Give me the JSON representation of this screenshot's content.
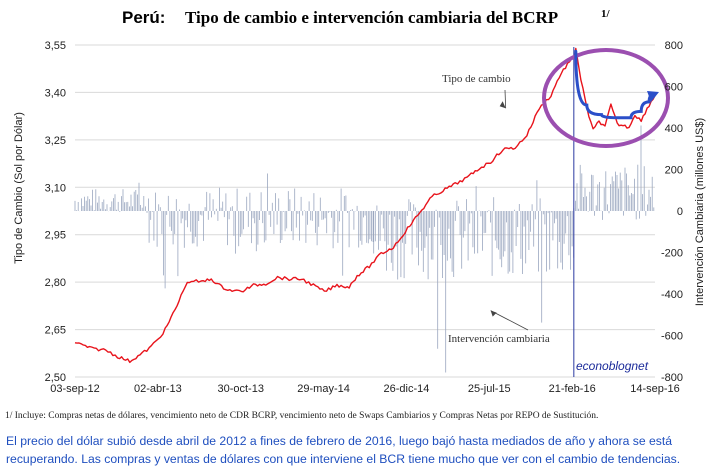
{
  "header": {
    "title_country": "Perú:",
    "title_text": "Tipo de cambio e intervención cambiaria del BCRP",
    "title_note": "1/"
  },
  "footnote": "1/ Incluye: Compras netas de dólares, vencimiento neto de CDR BCRP, vencimiento neto de Swaps Cambiarios y Compras Netas por REPO de Sustitución.",
  "caption": "El precio del dólar subió desde abril de 2012 a fines de febrero de 2016, luego bajó hasta mediados de año y ahora se está recuperando. Las compras y ventas de dólares con que interviene el BCR tiene mucho que ver con el cambio de tendencias.",
  "watermark": "econoblognet",
  "chart_data": {
    "type": "line",
    "title": "Perú: Tipo de cambio e intervención cambiaria del BCRP 1/",
    "x_tick_labels": [
      "03-sep-12",
      "02-abr-13",
      "30-oct-13",
      "29-may-14",
      "26-dic-14",
      "25-jul-15",
      "21-feb-16",
      "14-sep-16"
    ],
    "x_range": [
      "2012-09-03",
      "2016-09-14"
    ],
    "y_left": {
      "label": "Tipo de Cambio (Sol por Dólar)",
      "range": [
        2.5,
        3.55
      ],
      "ticks": [
        "2,50",
        "2,65",
        "2,80",
        "2,95",
        "3,10",
        "3,25",
        "3,40",
        "3,55"
      ]
    },
    "y_right": {
      "label": "Intervención Cambiaria (millones US$)",
      "range": [
        -800,
        800
      ],
      "ticks": [
        "-800",
        "-600",
        "-400",
        "-200",
        "0",
        "200",
        "400",
        "600",
        "800"
      ]
    },
    "grid": true,
    "series": [
      {
        "name": "Tipo de cambio",
        "axis": "left",
        "color": "#e8141c",
        "points": [
          [
            "2012-09-03",
            2.61
          ],
          [
            "2012-10-15",
            2.59
          ],
          [
            "2012-11-20",
            2.585
          ],
          [
            "2012-12-20",
            2.565
          ],
          [
            "2013-01-20",
            2.55
          ],
          [
            "2013-02-15",
            2.57
          ],
          [
            "2013-03-10",
            2.59
          ],
          [
            "2013-04-02",
            2.62
          ],
          [
            "2013-04-20",
            2.65
          ],
          [
            "2013-05-10",
            2.7
          ],
          [
            "2013-05-25",
            2.74
          ],
          [
            "2013-06-10",
            2.79
          ],
          [
            "2013-06-25",
            2.805
          ],
          [
            "2013-07-20",
            2.8
          ],
          [
            "2013-08-15",
            2.81
          ],
          [
            "2013-09-10",
            2.785
          ],
          [
            "2013-10-01",
            2.775
          ],
          [
            "2013-10-30",
            2.77
          ],
          [
            "2013-11-30",
            2.79
          ],
          [
            "2013-12-31",
            2.795
          ],
          [
            "2014-01-30",
            2.815
          ],
          [
            "2014-03-01",
            2.81
          ],
          [
            "2014-04-01",
            2.81
          ],
          [
            "2014-05-01",
            2.79
          ],
          [
            "2014-05-29",
            2.77
          ],
          [
            "2014-06-30",
            2.79
          ],
          [
            "2014-07-31",
            2.785
          ],
          [
            "2014-08-20",
            2.82
          ],
          [
            "2014-09-20",
            2.85
          ],
          [
            "2014-10-20",
            2.89
          ],
          [
            "2014-11-20",
            2.91
          ],
          [
            "2014-12-26",
            2.97
          ],
          [
            "2015-01-26",
            3.02
          ],
          [
            "2015-02-26",
            3.07
          ],
          [
            "2015-03-26",
            3.09
          ],
          [
            "2015-04-26",
            3.11
          ],
          [
            "2015-05-26",
            3.13
          ],
          [
            "2015-06-26",
            3.16
          ],
          [
            "2015-07-25",
            3.18
          ],
          [
            "2015-08-25",
            3.22
          ],
          [
            "2015-09-25",
            3.225
          ],
          [
            "2015-10-25",
            3.265
          ],
          [
            "2015-11-25",
            3.35
          ],
          [
            "2015-12-25",
            3.39
          ],
          [
            "2016-01-15",
            3.45
          ],
          [
            "2016-02-05",
            3.49
          ],
          [
            "2016-02-21",
            3.51
          ],
          [
            "2016-02-26",
            3.54
          ],
          [
            "2016-03-10",
            3.44
          ],
          [
            "2016-03-25",
            3.35
          ],
          [
            "2016-04-10",
            3.28
          ],
          [
            "2016-04-25",
            3.31
          ],
          [
            "2016-05-10",
            3.29
          ],
          [
            "2016-05-25",
            3.36
          ],
          [
            "2016-06-10",
            3.3
          ],
          [
            "2016-06-25",
            3.295
          ],
          [
            "2016-07-10",
            3.29
          ],
          [
            "2016-07-25",
            3.33
          ],
          [
            "2016-08-10",
            3.31
          ],
          [
            "2016-08-25",
            3.35
          ],
          [
            "2016-09-14",
            3.39
          ]
        ]
      },
      {
        "name": "Intervención cambiaria",
        "axis": "right",
        "color": "#9aa6bf",
        "type": "bar",
        "segments": [
          {
            "from": "2012-09-03",
            "to": "2013-03-10",
            "base": 50,
            "amplitude": 60
          },
          {
            "from": "2013-03-10",
            "to": "2014-10-01",
            "base": -30,
            "amplitude": 150
          },
          {
            "from": "2014-10-01",
            "to": "2016-02-21",
            "base": -130,
            "amplitude": 200
          },
          {
            "from": "2016-02-21",
            "to": "2016-09-14",
            "base": 90,
            "amplitude": 140
          }
        ]
      }
    ],
    "annotations": [
      {
        "text": "Tipo de cambio",
        "arrow_to": [
          "2015-09-01",
          3.35
        ]
      },
      {
        "text": "Intervención cambiaria",
        "arrow_to": [
          "2015-07-25",
          -480
        ]
      }
    ],
    "highlight": {
      "trend_color": "#2b4fc9",
      "trend_points": [
        [
          "2016-02-26",
          3.53
        ],
        [
          "2016-03-25",
          3.36
        ],
        [
          "2016-05-01",
          3.33
        ],
        [
          "2016-06-10",
          3.32
        ],
        [
          "2016-07-15",
          3.32
        ],
        [
          "2016-08-10",
          3.34
        ],
        [
          "2016-08-30",
          3.37
        ],
        [
          "2016-09-14",
          3.395
        ]
      ],
      "ellipse_color": "#9b4fb0",
      "marker_date": "2016-02-21"
    }
  }
}
